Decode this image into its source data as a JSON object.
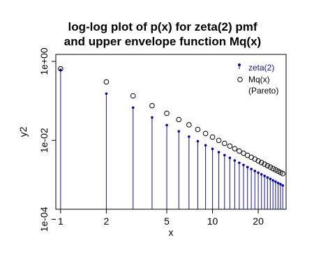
{
  "chart_data": {
    "type": "scatter",
    "title_lines": [
      "log-log plot of p(x) for zeta(2) pmf",
      "and upper envelope function Mq(x)"
    ],
    "xlabel": "x",
    "ylabel": "y2",
    "x_scale": "log",
    "y_scale": "log",
    "xlim": [
      0.93,
      30.5
    ],
    "ylim": [
      0.00018,
      1.5
    ],
    "x_ticks": [
      1,
      2,
      5,
      10,
      20
    ],
    "x_tick_labels": [
      "1",
      "2",
      "5",
      "10",
      "20"
    ],
    "y_ticks": [
      0.0001,
      0.01,
      1
    ],
    "y_tick_labels": [
      "1e-04",
      "1e-02",
      "1e+00"
    ],
    "legend_position": "top-right",
    "series": [
      {
        "name": "zeta(2)",
        "style": "points-with-vertical-lines",
        "color": "#1111aa",
        "x": [
          1,
          2,
          3,
          4,
          5,
          6,
          7,
          8,
          9,
          10,
          11,
          12,
          13,
          14,
          15,
          16,
          17,
          18,
          19,
          20,
          21,
          22,
          23,
          24,
          25,
          26,
          27,
          28,
          29
        ],
        "values": [
          0.608,
          0.152,
          0.0675,
          0.038,
          0.0243,
          0.0169,
          0.0124,
          0.0095,
          0.0075,
          0.00608,
          0.00502,
          0.00422,
          0.0036,
          0.0031,
          0.0027,
          0.00238,
          0.0021,
          0.00188,
          0.00168,
          0.00152,
          0.00138,
          0.00126,
          0.00115,
          0.00106,
          0.00097,
          0.0009,
          0.00083,
          0.00078,
          0.00072
        ]
      },
      {
        "name": "Mq(x)",
        "name_line2": "(Pareto)",
        "style": "open-circles",
        "color": "#000000",
        "x": [
          1,
          2,
          3,
          4,
          5,
          6,
          7,
          8,
          9,
          10,
          11,
          12,
          13,
          14,
          15,
          16,
          17,
          18,
          19,
          20,
          21,
          22,
          23,
          24,
          25,
          26,
          27,
          28,
          29
        ],
        "values": [
          0.65,
          0.302,
          0.134,
          0.0755,
          0.0483,
          0.0336,
          0.0247,
          0.0189,
          0.0149,
          0.0121,
          0.00998,
          0.00839,
          0.00715,
          0.00616,
          0.00537,
          0.00472,
          0.00418,
          0.00373,
          0.00335,
          0.00302,
          0.00274,
          0.0025,
          0.00228,
          0.0021,
          0.00193,
          0.00179,
          0.00166,
          0.00154,
          0.00144
        ]
      }
    ]
  }
}
